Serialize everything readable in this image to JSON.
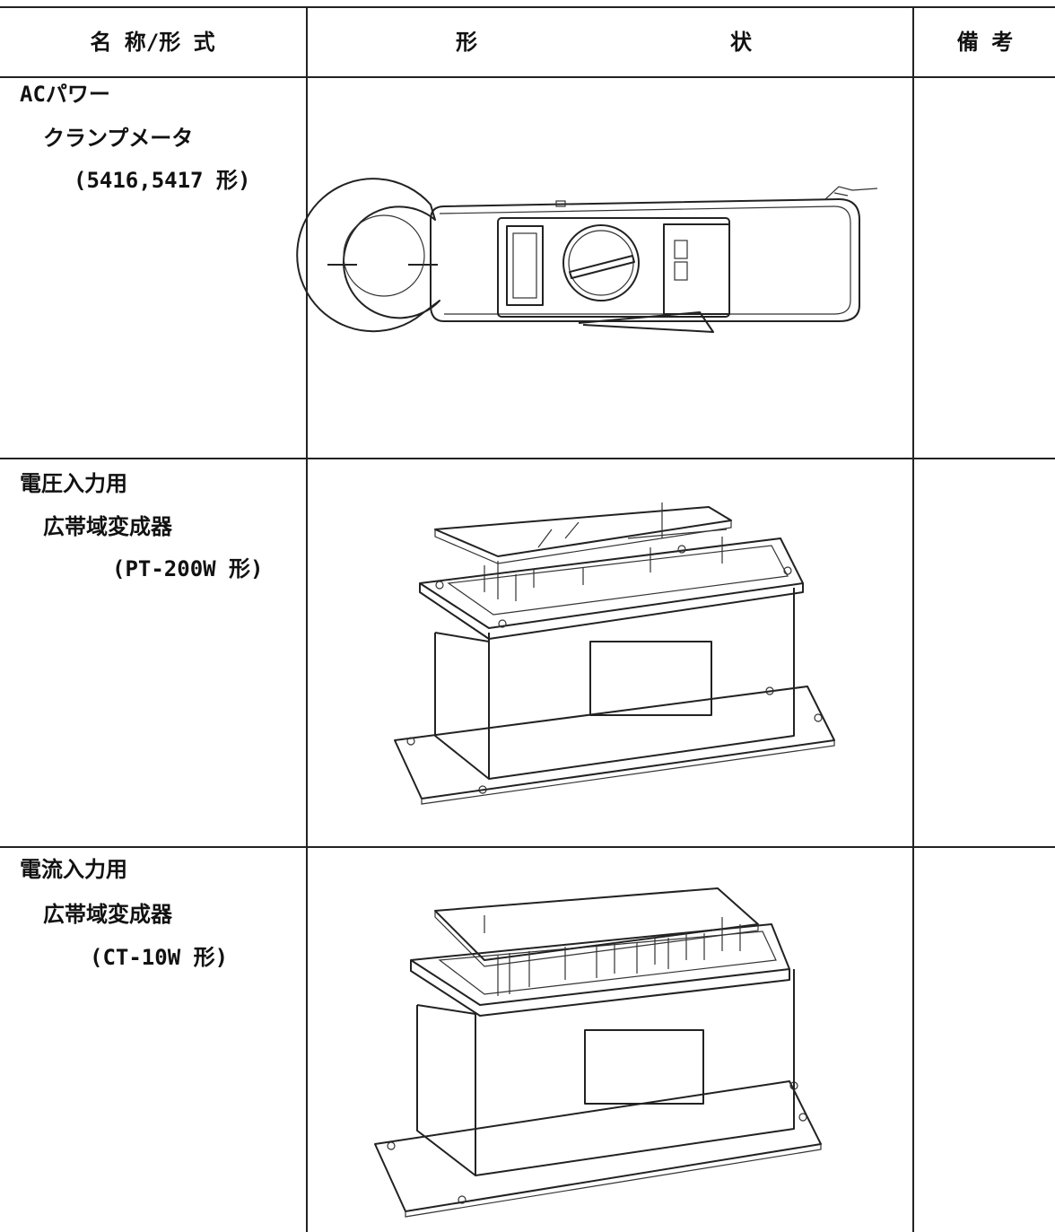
{
  "header": {
    "name": "名 称/形 式",
    "shape_left": "形",
    "shape_right": "状",
    "remarks": "備 考"
  },
  "rows": [
    {
      "name": [
        "ACパワー",
        "クランプメータ",
        "(5416,5417 形)"
      ]
    },
    {
      "name": [
        "電圧入力用",
        "広帯域変成器",
        "(PT-200W 形)"
      ]
    },
    {
      "name": [
        "電流入力用",
        "広帯域変成器",
        "(CT-10W 形)"
      ]
    }
  ]
}
